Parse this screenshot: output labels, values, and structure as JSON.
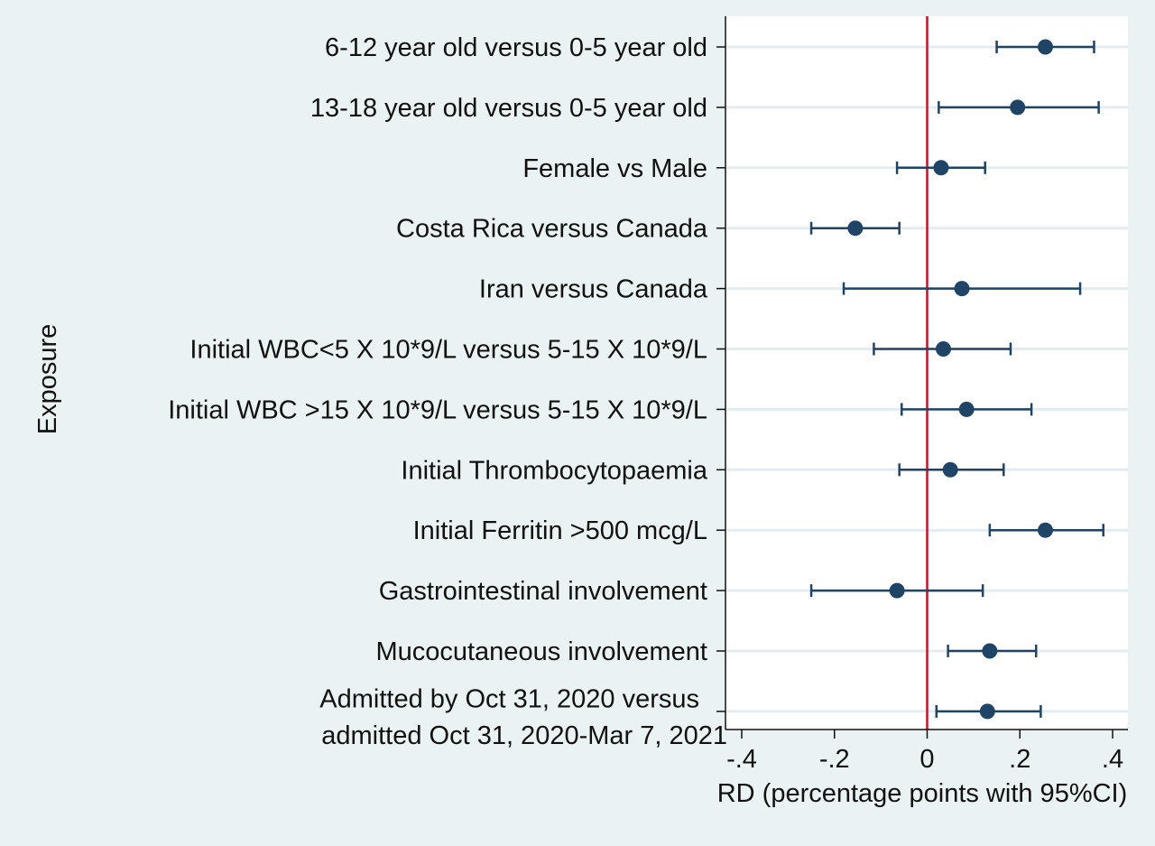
{
  "chart_data": {
    "type": "scatter",
    "subtype": "forest-plot",
    "title": "",
    "xlabel": "RD (percentage points with 95%CI)",
    "ylabel": "Exposure",
    "xlim": [
      -0.4,
      0.4
    ],
    "x_ticks": [
      -0.4,
      -0.2,
      0,
      0.2,
      0.4
    ],
    "x_tick_labels": [
      "-.4",
      "-.2",
      "0",
      ".2",
      ".4"
    ],
    "reference_line": 0,
    "grid": "horizontal",
    "colors": {
      "point": "#1f4466",
      "reference_line": "#c0142b",
      "grid": "#e3edef"
    },
    "rows": [
      {
        "label": [
          "6-12 year old versus 0-5 year old"
        ],
        "estimate": 0.255,
        "ci_low": 0.15,
        "ci_high": 0.36
      },
      {
        "label": [
          "13-18 year old versus 0-5 year old"
        ],
        "estimate": 0.195,
        "ci_low": 0.025,
        "ci_high": 0.37
      },
      {
        "label": [
          "Female vs Male"
        ],
        "estimate": 0.03,
        "ci_low": -0.065,
        "ci_high": 0.125
      },
      {
        "label": [
          "Costa Rica versus Canada"
        ],
        "estimate": -0.155,
        "ci_low": -0.25,
        "ci_high": -0.06
      },
      {
        "label": [
          "Iran versus Canada"
        ],
        "estimate": 0.075,
        "ci_low": -0.18,
        "ci_high": 0.33
      },
      {
        "label": [
          "Initial WBC<5 X 10*9/L versus 5-15 X 10*9/L"
        ],
        "estimate": 0.035,
        "ci_low": -0.115,
        "ci_high": 0.18
      },
      {
        "label": [
          "Initial WBC >15 X 10*9/L versus 5-15 X 10*9/L"
        ],
        "estimate": 0.085,
        "ci_low": -0.055,
        "ci_high": 0.225
      },
      {
        "label": [
          "Initial Thrombocytopaemia"
        ],
        "estimate": 0.05,
        "ci_low": -0.06,
        "ci_high": 0.165
      },
      {
        "label": [
          "Initial Ferritin >500 mcg/L"
        ],
        "estimate": 0.255,
        "ci_low": 0.135,
        "ci_high": 0.38
      },
      {
        "label": [
          "Gastrointestinal involvement"
        ],
        "estimate": -0.065,
        "ci_low": -0.25,
        "ci_high": 0.12
      },
      {
        "label": [
          "Mucocutaneous involvement"
        ],
        "estimate": 0.135,
        "ci_low": 0.045,
        "ci_high": 0.235
      },
      {
        "label": [
          "Admitted by Oct 31, 2020 versus",
          "admitted Oct 31, 2020-Mar 7, 2021"
        ],
        "estimate": 0.13,
        "ci_low": 0.02,
        "ci_high": 0.245
      }
    ]
  }
}
